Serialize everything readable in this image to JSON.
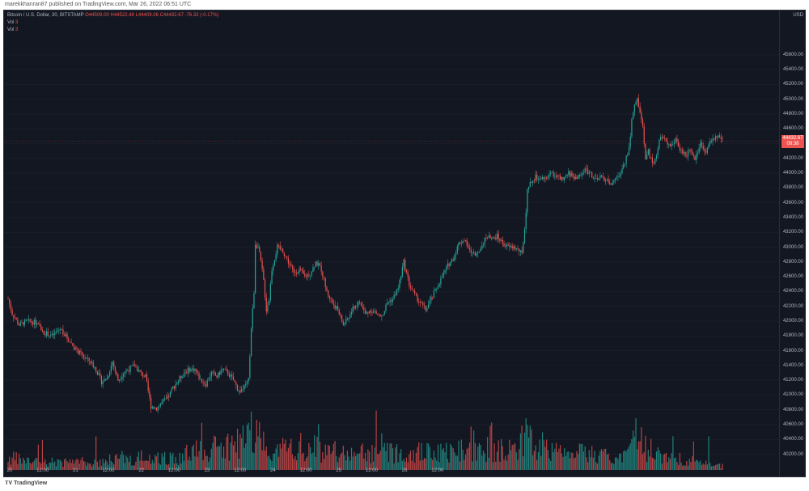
{
  "credit": "marekkhanran87 published on TradingView.com, Mar 26, 2022 06:51 UTC",
  "legend": {
    "symbol": "Bitcoin / U.S. Dollar, 30, BITSTAMP",
    "ohlc": "O44509.00  H44522.48  L44409.06  C44432.67  -76.32 (-0.17%)",
    "vol1_label": "Vol",
    "vol1_value": "3",
    "vol2_label": "Vol",
    "vol2_value": "3"
  },
  "currency": "USD",
  "price_tag": {
    "price": "44432.67",
    "countdown": "09:38"
  },
  "footer": {
    "brand": "TradingView",
    "logo": "tv-logo-icon"
  },
  "colors": {
    "up": "#26a69a",
    "down": "#ef5350",
    "background": "#131722",
    "grid": "#1e222d"
  },
  "chart_data": {
    "type": "candlestick",
    "title": "Bitcoin / U.S. Dollar, 30, BITSTAMP",
    "ylim": [
      39900,
      46200
    ],
    "ylabel": "USD",
    "y_ticks": [
      "45600.00",
      "45400.00",
      "45200.00",
      "45000.00",
      "44800.00",
      "44600.00",
      "44400.00",
      "44200.00",
      "44000.00",
      "43800.00",
      "43600.00",
      "43400.00",
      "43200.00",
      "43000.00",
      "42800.00",
      "42600.00",
      "42400.00",
      "42200.00",
      "42000.00",
      "41800.00",
      "41600.00",
      "41400.00",
      "41200.00",
      "41000.00",
      "40800.00",
      "40600.00",
      "40400.00",
      "40200.00"
    ],
    "x_ticks": [
      "20",
      "12:00",
      "21",
      "12:00",
      "22",
      "12:00",
      "23",
      "12:00",
      "24",
      "12:00",
      "25",
      "12:00",
      "26",
      "12:00"
    ],
    "last_price": 44432.67,
    "price_path": [
      [
        0,
        42300
      ],
      [
        3,
        42100
      ],
      [
        8,
        41950
      ],
      [
        14,
        42000
      ],
      [
        20,
        41980
      ],
      [
        26,
        41850
      ],
      [
        32,
        41800
      ],
      [
        38,
        41900
      ],
      [
        44,
        41750
      ],
      [
        50,
        41600
      ],
      [
        56,
        41500
      ],
      [
        60,
        41450
      ],
      [
        64,
        41350
      ],
      [
        68,
        41180
      ],
      [
        72,
        41230
      ],
      [
        76,
        41450
      ],
      [
        80,
        41200
      ],
      [
        84,
        41300
      ],
      [
        88,
        41350
      ],
      [
        92,
        41400
      ],
      [
        96,
        41300
      ],
      [
        100,
        41250
      ],
      [
        104,
        40850
      ],
      [
        108,
        40820
      ],
      [
        112,
        40900
      ],
      [
        116,
        40950
      ],
      [
        120,
        41100
      ],
      [
        124,
        41200
      ],
      [
        128,
        41300
      ],
      [
        132,
        41350
      ],
      [
        136,
        41350
      ],
      [
        140,
        41200
      ],
      [
        144,
        41150
      ],
      [
        148,
        41300
      ],
      [
        152,
        41250
      ],
      [
        156,
        41350
      ],
      [
        160,
        41300
      ],
      [
        164,
        41200
      ],
      [
        168,
        41050
      ],
      [
        172,
        41100
      ],
      [
        175,
        41200
      ],
      [
        177,
        41900
      ],
      [
        179,
        42400
      ],
      [
        180,
        43050
      ],
      [
        182,
        43000
      ],
      [
        184,
        42800
      ],
      [
        186,
        42550
      ],
      [
        188,
        42150
      ],
      [
        190,
        42300
      ],
      [
        192,
        42700
      ],
      [
        196,
        43000
      ],
      [
        200,
        42950
      ],
      [
        204,
        42800
      ],
      [
        208,
        42650
      ],
      [
        212,
        42700
      ],
      [
        216,
        42600
      ],
      [
        220,
        42650
      ],
      [
        224,
        42800
      ],
      [
        228,
        42700
      ],
      [
        232,
        42400
      ],
      [
        236,
        42250
      ],
      [
        240,
        42150
      ],
      [
        244,
        41950
      ],
      [
        248,
        42050
      ],
      [
        252,
        42200
      ],
      [
        256,
        42250
      ],
      [
        260,
        42100
      ],
      [
        264,
        42150
      ],
      [
        268,
        42100
      ],
      [
        272,
        42050
      ],
      [
        276,
        42250
      ],
      [
        280,
        42300
      ],
      [
        284,
        42450
      ],
      [
        288,
        42800
      ],
      [
        292,
        42500
      ],
      [
        296,
        42350
      ],
      [
        300,
        42250
      ],
      [
        304,
        42150
      ],
      [
        308,
        42300
      ],
      [
        312,
        42450
      ],
      [
        316,
        42600
      ],
      [
        320,
        42750
      ],
      [
        324,
        42850
      ],
      [
        328,
        43050
      ],
      [
        332,
        43100
      ],
      [
        336,
        42950
      ],
      [
        340,
        42900
      ],
      [
        344,
        43000
      ],
      [
        348,
        43150
      ],
      [
        352,
        43100
      ],
      [
        356,
        43150
      ],
      [
        360,
        43050
      ],
      [
        364,
        43000
      ],
      [
        368,
        43000
      ],
      [
        372,
        42950
      ],
      [
        374,
        42900
      ],
      [
        376,
        43250
      ],
      [
        378,
        43750
      ],
      [
        380,
        43850
      ],
      [
        384,
        43950
      ],
      [
        388,
        43900
      ],
      [
        392,
        43950
      ],
      [
        396,
        44000
      ],
      [
        400,
        43950
      ],
      [
        404,
        43900
      ],
      [
        408,
        44000
      ],
      [
        412,
        43950
      ],
      [
        416,
        43950
      ],
      [
        420,
        44050
      ],
      [
        424,
        44000
      ],
      [
        428,
        43900
      ],
      [
        432,
        43950
      ],
      [
        436,
        43900
      ],
      [
        440,
        43850
      ],
      [
        444,
        43950
      ],
      [
        448,
        44100
      ],
      [
        452,
        44350
      ],
      [
        454,
        44700
      ],
      [
        456,
        44900
      ],
      [
        458,
        45000
      ],
      [
        460,
        44850
      ],
      [
        462,
        44600
      ],
      [
        464,
        44200
      ],
      [
        466,
        44300
      ],
      [
        470,
        44100
      ],
      [
        474,
        44450
      ],
      [
        478,
        44500
      ],
      [
        482,
        44350
      ],
      [
        486,
        44450
      ],
      [
        490,
        44300
      ],
      [
        494,
        44250
      ],
      [
        496,
        44350
      ],
      [
        500,
        44200
      ],
      [
        504,
        44400
      ],
      [
        508,
        44300
      ],
      [
        512,
        44450
      ],
      [
        516,
        44500
      ],
      [
        520,
        44430
      ]
    ],
    "volume_profile": [
      [
        0,
        3
      ],
      [
        20,
        2
      ],
      [
        40,
        2
      ],
      [
        60,
        2
      ],
      [
        80,
        3
      ],
      [
        100,
        3
      ],
      [
        120,
        3
      ],
      [
        140,
        5
      ],
      [
        160,
        6
      ],
      [
        170,
        7
      ],
      [
        178,
        10
      ],
      [
        186,
        7
      ],
      [
        196,
        5
      ],
      [
        210,
        6
      ],
      [
        230,
        5
      ],
      [
        250,
        4
      ],
      [
        270,
        4
      ],
      [
        290,
        5
      ],
      [
        310,
        4
      ],
      [
        330,
        5
      ],
      [
        350,
        5
      ],
      [
        360,
        6
      ],
      [
        370,
        4
      ],
      [
        376,
        9
      ],
      [
        382,
        6
      ],
      [
        400,
        4
      ],
      [
        420,
        4
      ],
      [
        440,
        3
      ],
      [
        452,
        5
      ],
      [
        458,
        9
      ],
      [
        466,
        5
      ],
      [
        480,
        3
      ],
      [
        500,
        2
      ],
      [
        520,
        1
      ]
    ]
  }
}
